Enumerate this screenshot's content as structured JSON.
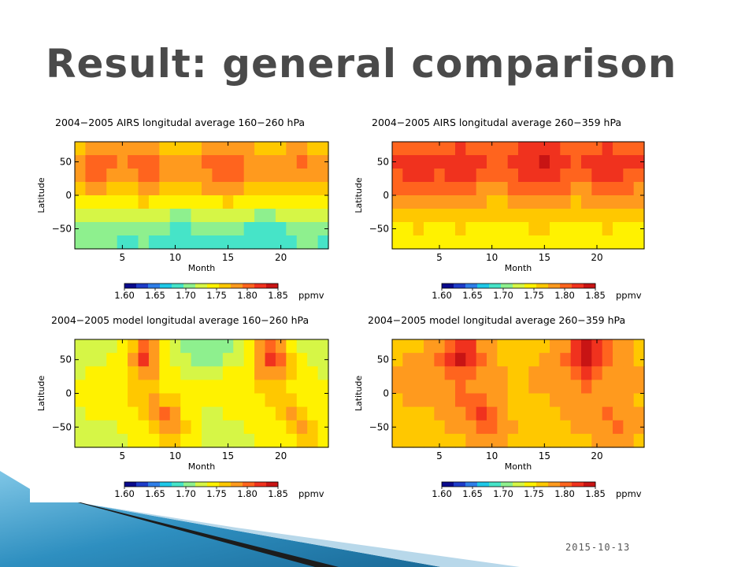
{
  "slide": {
    "title": "Result: general comparison",
    "date": "2015-10-13"
  },
  "colors": {
    "colormap": [
      "#0a0a8c",
      "#1e3cc8",
      "#2e7ee8",
      "#1ec8e8",
      "#46e4c8",
      "#8ef08e",
      "#d6f646",
      "#fff200",
      "#ffc800",
      "#ff9a1e",
      "#ff641e",
      "#f0321e",
      "#c81414"
    ],
    "title_text": "#4a4a4a",
    "deco_dark": "#1c1c1c",
    "deco_blue": "#2e8fc0"
  },
  "chart_data": [
    {
      "type": "heatmap",
      "title": "2004−2005 AIRS longitudal average 160−260 hPa",
      "xlabel": "Month",
      "ylabel": "Latitude",
      "xlim": [
        1,
        24
      ],
      "ylim": [
        -80,
        80
      ],
      "x_ticks": [
        5,
        10,
        15,
        20
      ],
      "y_ticks": [
        50,
        0,
        -50
      ],
      "y_tick_labels": [
        "50",
        "0",
        "−50"
      ],
      "value_range": [
        1.6,
        1.85
      ],
      "latitudes": [
        70,
        50,
        30,
        10,
        -10,
        -30,
        -50,
        -70
      ],
      "months": [
        1,
        2,
        3,
        4,
        5,
        6,
        7,
        8,
        9,
        10,
        11,
        12,
        13,
        14,
        15,
        16,
        17,
        18,
        19,
        20,
        21,
        22,
        23,
        24
      ],
      "z": [
        [
          1.765,
          1.775,
          1.78,
          1.78,
          1.775,
          1.78,
          1.79,
          1.78,
          1.77,
          1.765,
          1.765,
          1.77,
          1.775,
          1.78,
          1.79,
          1.785,
          1.775,
          1.77,
          1.765,
          1.77,
          1.775,
          1.775,
          1.77,
          1.765
        ],
        [
          1.785,
          1.795,
          1.8,
          1.795,
          1.79,
          1.795,
          1.81,
          1.8,
          1.785,
          1.78,
          1.78,
          1.785,
          1.795,
          1.805,
          1.81,
          1.8,
          1.79,
          1.785,
          1.78,
          1.785,
          1.79,
          1.795,
          1.79,
          1.785
        ],
        [
          1.785,
          1.795,
          1.795,
          1.79,
          1.785,
          1.79,
          1.805,
          1.795,
          1.78,
          1.775,
          1.775,
          1.78,
          1.79,
          1.8,
          1.805,
          1.795,
          1.785,
          1.78,
          1.775,
          1.78,
          1.785,
          1.79,
          1.785,
          1.78
        ],
        [
          1.765,
          1.775,
          1.775,
          1.77,
          1.765,
          1.77,
          1.785,
          1.775,
          1.765,
          1.76,
          1.76,
          1.765,
          1.775,
          1.78,
          1.785,
          1.775,
          1.765,
          1.76,
          1.76,
          1.765,
          1.77,
          1.77,
          1.765,
          1.76
        ],
        [
          1.745,
          1.75,
          1.75,
          1.745,
          1.74,
          1.745,
          1.755,
          1.75,
          1.745,
          1.74,
          1.74,
          1.74,
          1.745,
          1.75,
          1.755,
          1.75,
          1.745,
          1.74,
          1.74,
          1.745,
          1.75,
          1.75,
          1.745,
          1.74
        ],
        [
          1.725,
          1.73,
          1.73,
          1.725,
          1.72,
          1.72,
          1.73,
          1.725,
          1.72,
          1.715,
          1.715,
          1.72,
          1.72,
          1.725,
          1.73,
          1.725,
          1.72,
          1.715,
          1.715,
          1.72,
          1.725,
          1.73,
          1.725,
          1.72
        ],
        [
          1.71,
          1.71,
          1.715,
          1.71,
          1.705,
          1.705,
          1.71,
          1.705,
          1.7,
          1.695,
          1.695,
          1.7,
          1.7,
          1.705,
          1.705,
          1.7,
          1.695,
          1.69,
          1.69,
          1.695,
          1.7,
          1.705,
          1.705,
          1.7
        ],
        [
          1.7,
          1.7,
          1.705,
          1.7,
          1.695,
          1.695,
          1.7,
          1.695,
          1.69,
          1.69,
          1.69,
          1.69,
          1.69,
          1.695,
          1.695,
          1.69,
          1.685,
          1.685,
          1.685,
          1.69,
          1.695,
          1.7,
          1.7,
          1.695
        ]
      ]
    },
    {
      "type": "heatmap",
      "title": "2004−2005 AIRS longitudal average 260−359 hPa",
      "xlabel": "Month",
      "ylabel": "Latitude",
      "xlim": [
        1,
        24
      ],
      "ylim": [
        -80,
        80
      ],
      "x_ticks": [
        5,
        10,
        15,
        20
      ],
      "y_ticks": [
        50,
        0,
        -50
      ],
      "y_tick_labels": [
        "50",
        "0",
        "−50"
      ],
      "value_range": [
        1.6,
        1.85
      ],
      "latitudes": [
        70,
        50,
        30,
        10,
        -10,
        -30,
        -50,
        -70
      ],
      "months": [
        1,
        2,
        3,
        4,
        5,
        6,
        7,
        8,
        9,
        10,
        11,
        12,
        13,
        14,
        15,
        16,
        17,
        18,
        19,
        20,
        21,
        22,
        23,
        24
      ],
      "z": [
        [
          1.8,
          1.805,
          1.81,
          1.81,
          1.805,
          1.81,
          1.815,
          1.81,
          1.805,
          1.8,
          1.8,
          1.805,
          1.815,
          1.82,
          1.825,
          1.815,
          1.805,
          1.8,
          1.8,
          1.81,
          1.815,
          1.81,
          1.805,
          1.8
        ],
        [
          1.815,
          1.82,
          1.825,
          1.82,
          1.82,
          1.825,
          1.83,
          1.825,
          1.815,
          1.81,
          1.81,
          1.815,
          1.825,
          1.83,
          1.835,
          1.825,
          1.815,
          1.81,
          1.815,
          1.825,
          1.83,
          1.825,
          1.82,
          1.815
        ],
        [
          1.81,
          1.815,
          1.82,
          1.815,
          1.81,
          1.815,
          1.825,
          1.815,
          1.805,
          1.8,
          1.8,
          1.805,
          1.815,
          1.82,
          1.825,
          1.815,
          1.805,
          1.8,
          1.805,
          1.815,
          1.82,
          1.815,
          1.81,
          1.805
        ],
        [
          1.795,
          1.8,
          1.805,
          1.8,
          1.795,
          1.8,
          1.805,
          1.8,
          1.79,
          1.79,
          1.79,
          1.795,
          1.8,
          1.805,
          1.81,
          1.8,
          1.795,
          1.79,
          1.79,
          1.8,
          1.805,
          1.8,
          1.795,
          1.79
        ],
        [
          1.78,
          1.785,
          1.785,
          1.78,
          1.775,
          1.78,
          1.785,
          1.78,
          1.775,
          1.77,
          1.77,
          1.775,
          1.78,
          1.785,
          1.785,
          1.78,
          1.775,
          1.77,
          1.775,
          1.78,
          1.785,
          1.78,
          1.775,
          1.775
        ],
        [
          1.765,
          1.77,
          1.77,
          1.765,
          1.76,
          1.765,
          1.77,
          1.765,
          1.76,
          1.755,
          1.755,
          1.76,
          1.765,
          1.77,
          1.77,
          1.765,
          1.76,
          1.755,
          1.76,
          1.765,
          1.77,
          1.765,
          1.76,
          1.76
        ],
        [
          1.75,
          1.75,
          1.755,
          1.75,
          1.745,
          1.75,
          1.755,
          1.75,
          1.745,
          1.74,
          1.74,
          1.745,
          1.75,
          1.755,
          1.755,
          1.75,
          1.745,
          1.74,
          1.745,
          1.75,
          1.755,
          1.75,
          1.745,
          1.745
        ],
        [
          1.74,
          1.74,
          1.745,
          1.74,
          1.74,
          1.74,
          1.745,
          1.74,
          1.735,
          1.735,
          1.735,
          1.74,
          1.74,
          1.745,
          1.745,
          1.74,
          1.735,
          1.735,
          1.74,
          1.74,
          1.745,
          1.745,
          1.74,
          1.74
        ]
      ]
    },
    {
      "type": "heatmap",
      "title": "2004−2005 model longitudal average 160−260 hPa",
      "xlabel": "Month",
      "ylabel": "Latitude",
      "xlim": [
        1,
        24
      ],
      "ylim": [
        -80,
        80
      ],
      "x_ticks": [
        5,
        10,
        15,
        20
      ],
      "y_ticks": [
        50,
        0,
        -50
      ],
      "y_tick_labels": [
        "50",
        "0",
        "−50"
      ],
      "value_range": [
        1.6,
        1.85
      ],
      "latitudes": [
        70,
        50,
        30,
        10,
        -10,
        -30,
        -50,
        -70
      ],
      "months": [
        1,
        2,
        3,
        4,
        5,
        6,
        7,
        8,
        9,
        10,
        11,
        12,
        13,
        14,
        15,
        16,
        17,
        18,
        19,
        20,
        21,
        22,
        23,
        24
      ],
      "z": [
        [
          1.72,
          1.72,
          1.725,
          1.73,
          1.74,
          1.77,
          1.8,
          1.78,
          1.74,
          1.72,
          1.71,
          1.7,
          1.7,
          1.705,
          1.71,
          1.72,
          1.74,
          1.78,
          1.81,
          1.79,
          1.75,
          1.73,
          1.72,
          1.72
        ],
        [
          1.72,
          1.725,
          1.73,
          1.735,
          1.75,
          1.785,
          1.815,
          1.79,
          1.75,
          1.73,
          1.72,
          1.71,
          1.71,
          1.715,
          1.72,
          1.73,
          1.75,
          1.79,
          1.82,
          1.8,
          1.76,
          1.735,
          1.725,
          1.72
        ],
        [
          1.73,
          1.735,
          1.74,
          1.74,
          1.75,
          1.77,
          1.79,
          1.775,
          1.75,
          1.735,
          1.73,
          1.725,
          1.725,
          1.73,
          1.735,
          1.74,
          1.75,
          1.775,
          1.79,
          1.78,
          1.755,
          1.74,
          1.735,
          1.73
        ],
        [
          1.735,
          1.74,
          1.74,
          1.745,
          1.75,
          1.755,
          1.765,
          1.76,
          1.75,
          1.745,
          1.74,
          1.735,
          1.735,
          1.74,
          1.74,
          1.745,
          1.75,
          1.755,
          1.765,
          1.76,
          1.75,
          1.745,
          1.74,
          1.735
        ],
        [
          1.735,
          1.74,
          1.74,
          1.74,
          1.745,
          1.755,
          1.77,
          1.78,
          1.77,
          1.755,
          1.74,
          1.735,
          1.735,
          1.74,
          1.74,
          1.74,
          1.745,
          1.75,
          1.755,
          1.76,
          1.76,
          1.75,
          1.74,
          1.735
        ],
        [
          1.73,
          1.735,
          1.735,
          1.735,
          1.74,
          1.75,
          1.765,
          1.785,
          1.795,
          1.775,
          1.75,
          1.735,
          1.73,
          1.73,
          1.735,
          1.735,
          1.74,
          1.745,
          1.75,
          1.76,
          1.78,
          1.77,
          1.75,
          1.74
        ],
        [
          1.73,
          1.73,
          1.73,
          1.73,
          1.735,
          1.74,
          1.75,
          1.765,
          1.78,
          1.79,
          1.765,
          1.74,
          1.73,
          1.725,
          1.73,
          1.73,
          1.735,
          1.74,
          1.745,
          1.75,
          1.765,
          1.79,
          1.77,
          1.75
        ],
        [
          1.73,
          1.73,
          1.73,
          1.73,
          1.73,
          1.735,
          1.74,
          1.75,
          1.76,
          1.765,
          1.75,
          1.735,
          1.725,
          1.725,
          1.725,
          1.73,
          1.73,
          1.735,
          1.74,
          1.745,
          1.75,
          1.76,
          1.755,
          1.745
        ]
      ]
    },
    {
      "type": "heatmap",
      "title": "2004−2005 model longitudal average 260−359 hPa",
      "xlabel": "Month",
      "ylabel": "Latitude",
      "xlim": [
        1,
        24
      ],
      "ylim": [
        -80,
        80
      ],
      "x_ticks": [
        5,
        10,
        15,
        20
      ],
      "y_ticks": [
        50,
        0,
        -50
      ],
      "y_tick_labels": [
        "50",
        "0",
        "−50"
      ],
      "value_range": [
        1.6,
        1.85
      ],
      "latitudes": [
        70,
        50,
        30,
        10,
        -10,
        -30,
        -50,
        -70
      ],
      "months": [
        1,
        2,
        3,
        4,
        5,
        6,
        7,
        8,
        9,
        10,
        11,
        12,
        13,
        14,
        15,
        16,
        17,
        18,
        19,
        20,
        21,
        22,
        23,
        24
      ],
      "z": [
        [
          1.765,
          1.77,
          1.77,
          1.775,
          1.785,
          1.8,
          1.83,
          1.815,
          1.79,
          1.775,
          1.765,
          1.76,
          1.76,
          1.765,
          1.77,
          1.78,
          1.79,
          1.815,
          1.835,
          1.82,
          1.795,
          1.78,
          1.775,
          1.77
        ],
        [
          1.77,
          1.775,
          1.78,
          1.785,
          1.795,
          1.815,
          1.845,
          1.825,
          1.795,
          1.78,
          1.77,
          1.765,
          1.765,
          1.77,
          1.775,
          1.785,
          1.8,
          1.83,
          1.845,
          1.83,
          1.805,
          1.785,
          1.775,
          1.77
        ],
        [
          1.775,
          1.78,
          1.785,
          1.785,
          1.79,
          1.8,
          1.81,
          1.8,
          1.79,
          1.78,
          1.775,
          1.77,
          1.77,
          1.775,
          1.78,
          1.785,
          1.79,
          1.805,
          1.815,
          1.805,
          1.79,
          1.785,
          1.78,
          1.775
        ],
        [
          1.775,
          1.78,
          1.78,
          1.785,
          1.785,
          1.79,
          1.795,
          1.79,
          1.785,
          1.78,
          1.775,
          1.77,
          1.77,
          1.775,
          1.775,
          1.78,
          1.785,
          1.79,
          1.795,
          1.79,
          1.785,
          1.78,
          1.775,
          1.775
        ],
        [
          1.77,
          1.775,
          1.775,
          1.775,
          1.78,
          1.785,
          1.795,
          1.805,
          1.8,
          1.785,
          1.775,
          1.77,
          1.765,
          1.77,
          1.77,
          1.775,
          1.78,
          1.785,
          1.79,
          1.79,
          1.785,
          1.78,
          1.775,
          1.77
        ],
        [
          1.765,
          1.77,
          1.77,
          1.77,
          1.775,
          1.78,
          1.79,
          1.805,
          1.815,
          1.8,
          1.78,
          1.77,
          1.765,
          1.765,
          1.765,
          1.77,
          1.775,
          1.78,
          1.785,
          1.79,
          1.8,
          1.79,
          1.78,
          1.775
        ],
        [
          1.76,
          1.76,
          1.765,
          1.765,
          1.77,
          1.775,
          1.78,
          1.79,
          1.8,
          1.81,
          1.79,
          1.775,
          1.765,
          1.76,
          1.76,
          1.765,
          1.77,
          1.775,
          1.78,
          1.785,
          1.79,
          1.8,
          1.79,
          1.78
        ],
        [
          1.755,
          1.755,
          1.76,
          1.76,
          1.76,
          1.765,
          1.77,
          1.775,
          1.78,
          1.785,
          1.775,
          1.765,
          1.76,
          1.755,
          1.755,
          1.76,
          1.76,
          1.765,
          1.77,
          1.775,
          1.775,
          1.78,
          1.775,
          1.77
        ]
      ]
    }
  ],
  "colorbar": {
    "tick_labels": [
      "1.60",
      "1.65",
      "1.70",
      "1.75",
      "1.80",
      "1.85"
    ],
    "unit": "ppmv"
  }
}
